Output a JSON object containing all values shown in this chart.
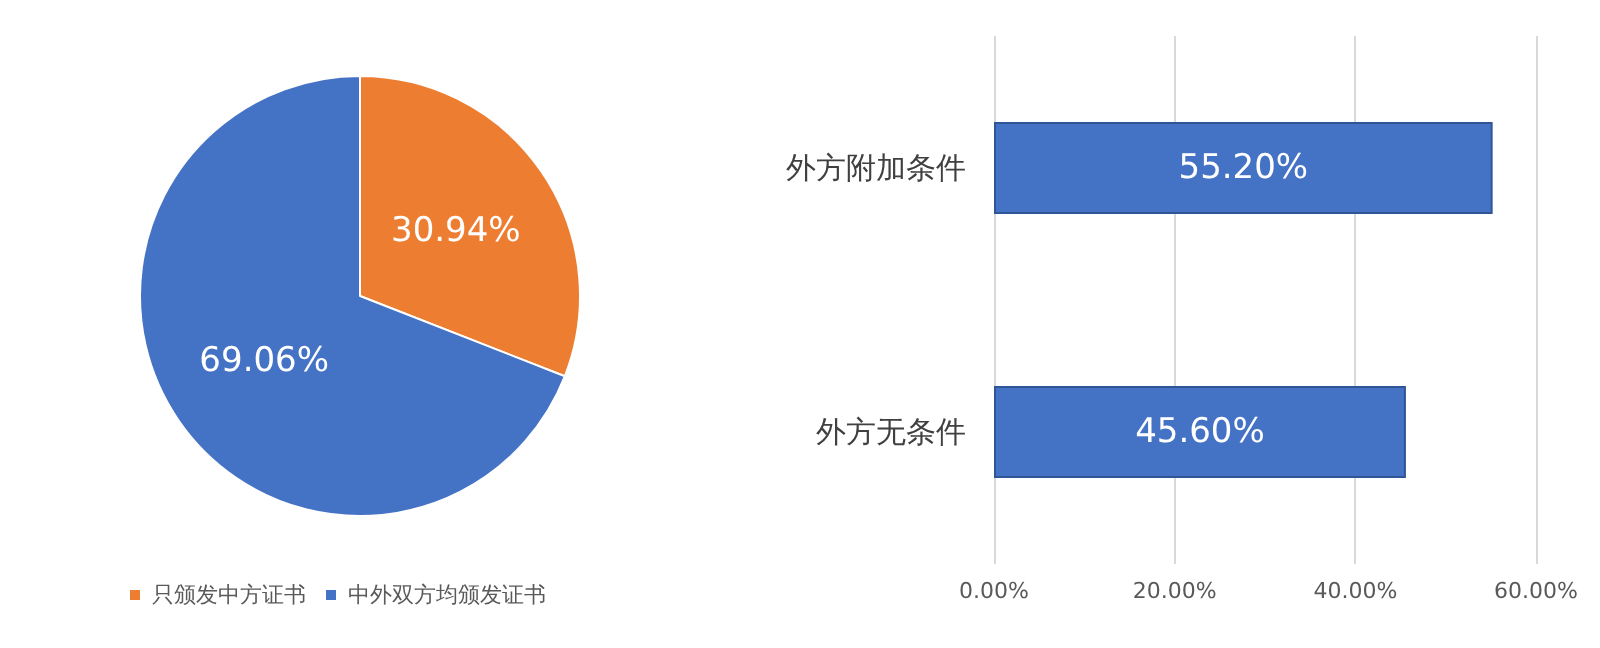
{
  "chart_data": [
    {
      "type": "pie",
      "categories": [
        "只颁发中方证书",
        "中外双方均颁发证书"
      ],
      "values": [
        30.94,
        69.06
      ],
      "colors": [
        "#ed7d31",
        "#4472c4"
      ],
      "value_labels": [
        "30.94%",
        "69.06%"
      ],
      "legend": "bottom left"
    },
    {
      "type": "bar",
      "orientation": "horizontal",
      "categories": [
        "外方附加条件",
        "外方无条件"
      ],
      "values": [
        55.2,
        45.6
      ],
      "color": "#4472c4",
      "value_labels": [
        "55.20%",
        "45.60%"
      ],
      "xlim": [
        0,
        60
      ],
      "xticks": [
        {
          "value": 0,
          "label": "0.00%"
        },
        {
          "value": 20,
          "label": "20.00%"
        },
        {
          "value": 40,
          "label": "40.00%"
        },
        {
          "value": 60,
          "label": "60.00%"
        }
      ],
      "grid": "x"
    }
  ]
}
